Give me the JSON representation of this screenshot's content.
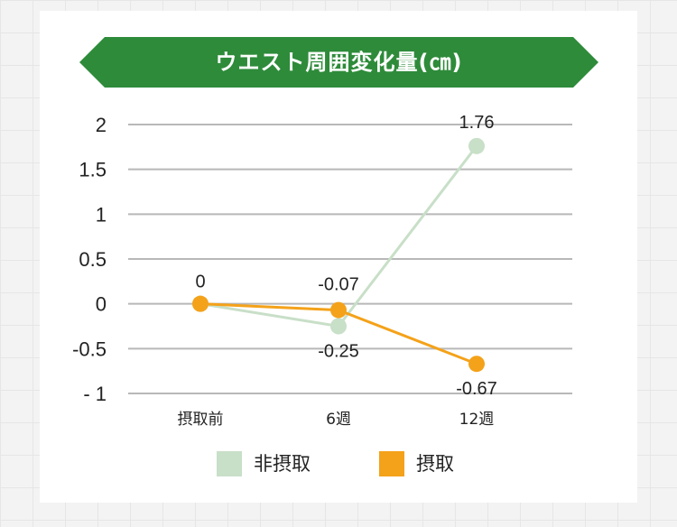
{
  "colors": {
    "banner": "#2e8b3a",
    "non_intake": "#c8dfc8",
    "intake": "#f4a21a",
    "grid": "#b8b8b8"
  },
  "chart_data": {
    "type": "line",
    "title": "ウエスト周囲変化量(㎝)",
    "categories": [
      "摂取前",
      "6週",
      "12週"
    ],
    "ylim": [
      -1,
      2
    ],
    "yticks": [
      2,
      1.5,
      1,
      0.5,
      0,
      -0.5,
      -1
    ],
    "ytick_labels": [
      "2",
      "1.5",
      "1",
      "0.5",
      "0",
      "-0.5",
      "- 1"
    ],
    "grid": true,
    "legend_position": "bottom",
    "series": [
      {
        "name": "非摂取",
        "values": [
          0,
          -0.25,
          1.76
        ],
        "labels": [
          "",
          "-0.25",
          "1.76"
        ]
      },
      {
        "name": "摂取",
        "values": [
          0,
          -0.07,
          -0.67
        ],
        "labels": [
          "0",
          "-0.07",
          "-0.67"
        ]
      }
    ]
  }
}
